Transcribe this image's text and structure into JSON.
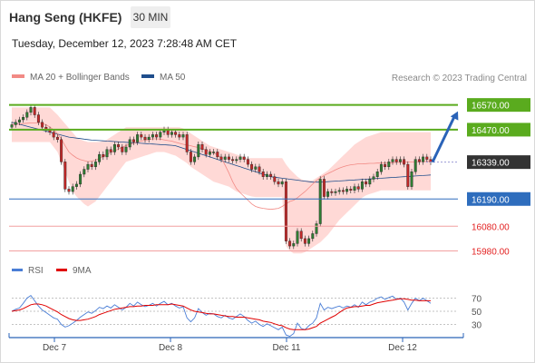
{
  "header": {
    "title": "Hang Seng (HKFE)",
    "timeframe": "30 MIN",
    "datetime": "Tuesday, December 12, 2023 7:28:48 AM CET"
  },
  "legend": {
    "items": [
      {
        "label": "MA 20 + Bollinger Bands",
        "color": "#f28a85"
      },
      {
        "label": "MA 50",
        "color": "#1f4e8c"
      }
    ]
  },
  "credit": "Research © 2023 Trading Central",
  "rsi_legend": {
    "items": [
      {
        "label": "RSI",
        "color": "#4a7ed6"
      },
      {
        "label": "9MA",
        "color": "#e00000"
      }
    ]
  },
  "colors": {
    "resistance": "#5aab1e",
    "support_blue": "#2e6dbd",
    "support_red": "#f2a0a0",
    "current_price_box": "#333333",
    "candle_up": "#2e7d32",
    "candle_down": "#c62828",
    "bollinger_fill": "#ffd5d2",
    "ma20": "#f28a85",
    "ma50": "#1f4e8c",
    "arrow": "#2a63b8"
  },
  "chart_data": [
    {
      "type": "candlestick",
      "title": "",
      "x_tick_labels": [
        "Dec 7",
        "Dec 8",
        "Dec 11",
        "Dec 12"
      ],
      "ylim": [
        15960,
        16620
      ],
      "price_levels": [
        {
          "value": 16570.0,
          "label": "16570.00",
          "role": "resistance"
        },
        {
          "value": 16470.0,
          "label": "16470.00",
          "role": "resistance"
        },
        {
          "value": 16339.0,
          "label": "16339.00",
          "role": "current"
        },
        {
          "value": 16190.0,
          "label": "16190.00",
          "role": "support"
        },
        {
          "value": 16080.0,
          "label": "16080.00",
          "role": "support"
        },
        {
          "value": 15980.0,
          "label": "15980.00",
          "role": "support"
        }
      ],
      "close": [
        16490,
        16500,
        16510,
        16520,
        16540,
        16560,
        16530,
        16500,
        16480,
        16470,
        16460,
        16440,
        16430,
        16340,
        16230,
        16220,
        16240,
        16250,
        16290,
        16310,
        16330,
        16320,
        16340,
        16370,
        16360,
        16390,
        16380,
        16410,
        16400,
        16380,
        16400,
        16430,
        16420,
        16450,
        16440,
        16430,
        16440,
        16450,
        16440,
        16460,
        16470,
        16450,
        16460,
        16450,
        16440,
        16450,
        16380,
        16340,
        16360,
        16410,
        16390,
        16370,
        16380,
        16380,
        16360,
        16350,
        16360,
        16350,
        16345,
        16350,
        16360,
        16350,
        16330,
        16310,
        16320,
        16300,
        16280,
        16290,
        16280,
        16260,
        16250,
        16260,
        16020,
        16000,
        16010,
        16060,
        16030,
        16010,
        16030,
        16050,
        16090,
        16270,
        16200,
        16220,
        16215,
        16220,
        16225,
        16220,
        16230,
        16225,
        16240,
        16230,
        16260,
        16250,
        16270,
        16280,
        16300,
        16330,
        16320,
        16340,
        16350,
        16340,
        16350,
        16330,
        16240,
        16300,
        16350,
        16340,
        16360,
        16350,
        16339
      ],
      "ma20": [
        16490,
        16492,
        16493,
        16495,
        16496,
        16497,
        16497,
        16497,
        16495,
        16490,
        16481,
        16469,
        16454,
        16433,
        16405,
        16380,
        16367,
        16356,
        16349,
        16345,
        16341,
        16343,
        16347,
        16354,
        16362,
        16370,
        16378,
        16385,
        16392,
        16399,
        16406,
        16411,
        16415,
        16420,
        16424,
        16428,
        16430,
        16433,
        16433,
        16432,
        16429,
        16426,
        16424,
        16419,
        16415,
        16411,
        16408,
        16405,
        16401,
        16398,
        16393,
        16388,
        16383,
        16376,
        16368,
        16356,
        16327,
        16295,
        16260,
        16232,
        16215,
        16200,
        16185,
        16170,
        16160,
        16155,
        16152,
        16150,
        16148,
        16150,
        16152,
        16160,
        16170,
        16180,
        16185,
        16195,
        16208,
        16220,
        16235,
        16250,
        16265,
        16275,
        16285,
        16293,
        16300,
        16308,
        16315,
        16320,
        16325,
        16328,
        16330,
        16332,
        16332,
        16333,
        16334,
        16334,
        16335,
        16335,
        16336,
        16336,
        16337,
        16338,
        16338,
        16339,
        16339,
        16340,
        16340,
        16341,
        16341,
        16342,
        16342
      ],
      "ma50": [
        16500,
        16496,
        16492,
        16488,
        16484,
        16480,
        16476,
        16472,
        16468,
        16464,
        16460,
        16456,
        16452,
        16448,
        16444,
        16440,
        16438,
        16436,
        16434,
        16432,
        16430,
        16428,
        16427,
        16426,
        16425,
        16424,
        16423,
        16422,
        16421,
        16420,
        16419,
        16418,
        16417,
        16416,
        16415,
        16414,
        16413,
        16412,
        16411,
        16410,
        16409,
        16408,
        16407,
        16405,
        16400,
        16395,
        16390,
        16385,
        16380,
        16375,
        16370,
        16365,
        16360,
        16355,
        16350,
        16345,
        16340,
        16335,
        16330,
        16325,
        16320,
        16315,
        16310,
        16305,
        16300,
        16295,
        16290,
        16285,
        16280,
        16278,
        16276,
        16274,
        16272,
        16270,
        16268,
        16266,
        16264,
        16262,
        16260,
        16258,
        16258,
        16258,
        16259,
        16260,
        16261,
        16262,
        16263,
        16264,
        16265,
        16266,
        16267,
        16268,
        16269,
        16270,
        16271,
        16272,
        16273,
        16274,
        16275,
        16276,
        16277,
        16278,
        16279,
        16280,
        16281,
        16282,
        16283,
        16284,
        16285,
        16286,
        16287
      ],
      "bollinger_upper": [
        16560,
        16560,
        16560,
        16560,
        16560,
        16560,
        16560,
        16560,
        16560,
        16560,
        16560,
        16545,
        16530,
        16512,
        16494,
        16476,
        16458,
        16440,
        16430,
        16425,
        16420,
        16420,
        16420,
        16420,
        16425,
        16430,
        16440,
        16450,
        16460,
        16470,
        16480,
        16480,
        16480,
        16480,
        16480,
        16480,
        16480,
        16480,
        16480,
        16480,
        16480,
        16480,
        16480,
        16480,
        16480,
        16475,
        16465,
        16455,
        16445,
        16435,
        16425,
        16415,
        16405,
        16400,
        16395,
        16390,
        16385,
        16380,
        16375,
        16370,
        16365,
        16360,
        16355,
        16355,
        16355,
        16355,
        16355,
        16355,
        16355,
        16355,
        16355,
        16355,
        16330,
        16310,
        16295,
        16280,
        16270,
        16265,
        16265,
        16265,
        16275,
        16285,
        16295,
        16305,
        16320,
        16335,
        16350,
        16365,
        16380,
        16395,
        16410,
        16420,
        16430,
        16440,
        16445,
        16450,
        16455,
        16460,
        16460,
        16460,
        16460,
        16460,
        16460,
        16460,
        16460,
        16460,
        16460,
        16460,
        16460,
        16460,
        16460
      ],
      "bollinger_lower": [
        16420,
        16420,
        16420,
        16420,
        16420,
        16420,
        16420,
        16420,
        16420,
        16420,
        16420,
        16400,
        16380,
        16340,
        16300,
        16260,
        16220,
        16200,
        16185,
        16170,
        16160,
        16170,
        16180,
        16200,
        16220,
        16240,
        16260,
        16280,
        16300,
        16320,
        16340,
        16345,
        16350,
        16355,
        16360,
        16365,
        16370,
        16375,
        16380,
        16380,
        16380,
        16375,
        16370,
        16365,
        16355,
        16345,
        16335,
        16320,
        16310,
        16300,
        16290,
        16280,
        16270,
        16260,
        16255,
        16250,
        16245,
        16240,
        16230,
        16220,
        16215,
        16210,
        16205,
        16200,
        16198,
        16198,
        16198,
        16198,
        16198,
        16198,
        16198,
        16198,
        16000,
        15980,
        15970,
        15970,
        15970,
        15975,
        15985,
        15995,
        16005,
        16015,
        16030,
        16045,
        16065,
        16085,
        16105,
        16120,
        16135,
        16150,
        16165,
        16180,
        16195,
        16205,
        16210,
        16215,
        16220,
        16225,
        16225,
        16225,
        16225,
        16225,
        16225,
        16225,
        16225,
        16225,
        16225,
        16225,
        16225,
        16225,
        16225
      ]
    },
    {
      "type": "line",
      "title": "",
      "ylim": [
        10,
        90
      ],
      "y_ticks": [
        70,
        50,
        30
      ],
      "series": [
        {
          "name": "RSI",
          "values": [
            50,
            53,
            55,
            62,
            70,
            74,
            66,
            58,
            52,
            48,
            44,
            40,
            38,
            30,
            26,
            28,
            32,
            36,
            41,
            45,
            49,
            47,
            51,
            56,
            54,
            58,
            55,
            60,
            56,
            52,
            56,
            62,
            58,
            64,
            60,
            57,
            59,
            62,
            58,
            62,
            65,
            60,
            62,
            58,
            55,
            57,
            40,
            34,
            40,
            54,
            48,
            44,
            47,
            46,
            42,
            40,
            44,
            40,
            38,
            42,
            46,
            42,
            36,
            32,
            35,
            30,
            27,
            31,
            28,
            25,
            22,
            26,
            14,
            12,
            16,
            32,
            24,
            22,
            28,
            32,
            40,
            62,
            52,
            56,
            54,
            56,
            58,
            55,
            58,
            56,
            60,
            56,
            64,
            60,
            64,
            66,
            70,
            72,
            68,
            71,
            73,
            68,
            70,
            64,
            52,
            62,
            70,
            66,
            70,
            66,
            62
          ]
        },
        {
          "name": "9MA",
          "values": [
            50,
            51,
            52,
            54,
            57,
            60,
            61,
            61,
            60,
            58,
            55,
            52,
            49,
            45,
            42,
            39,
            37,
            36,
            36,
            37,
            38,
            40,
            42,
            45,
            47,
            49,
            51,
            53,
            54,
            55,
            56,
            57,
            57,
            58,
            58,
            59,
            59,
            59,
            60,
            60,
            60,
            60,
            61,
            60,
            59,
            58,
            55,
            52,
            50,
            49,
            48,
            47,
            46,
            46,
            45,
            44,
            43,
            42,
            42,
            41,
            41,
            41,
            40,
            39,
            38,
            37,
            35,
            34,
            33,
            31,
            29,
            28,
            25,
            23,
            22,
            22,
            22,
            22,
            23,
            25,
            27,
            32,
            35,
            38,
            41,
            44,
            48,
            52,
            55,
            56,
            57,
            57,
            58,
            59,
            59,
            61,
            63,
            64,
            65,
            66,
            67,
            68,
            69,
            69,
            68,
            67,
            67,
            66,
            66,
            66,
            66
          ]
        }
      ]
    }
  ]
}
